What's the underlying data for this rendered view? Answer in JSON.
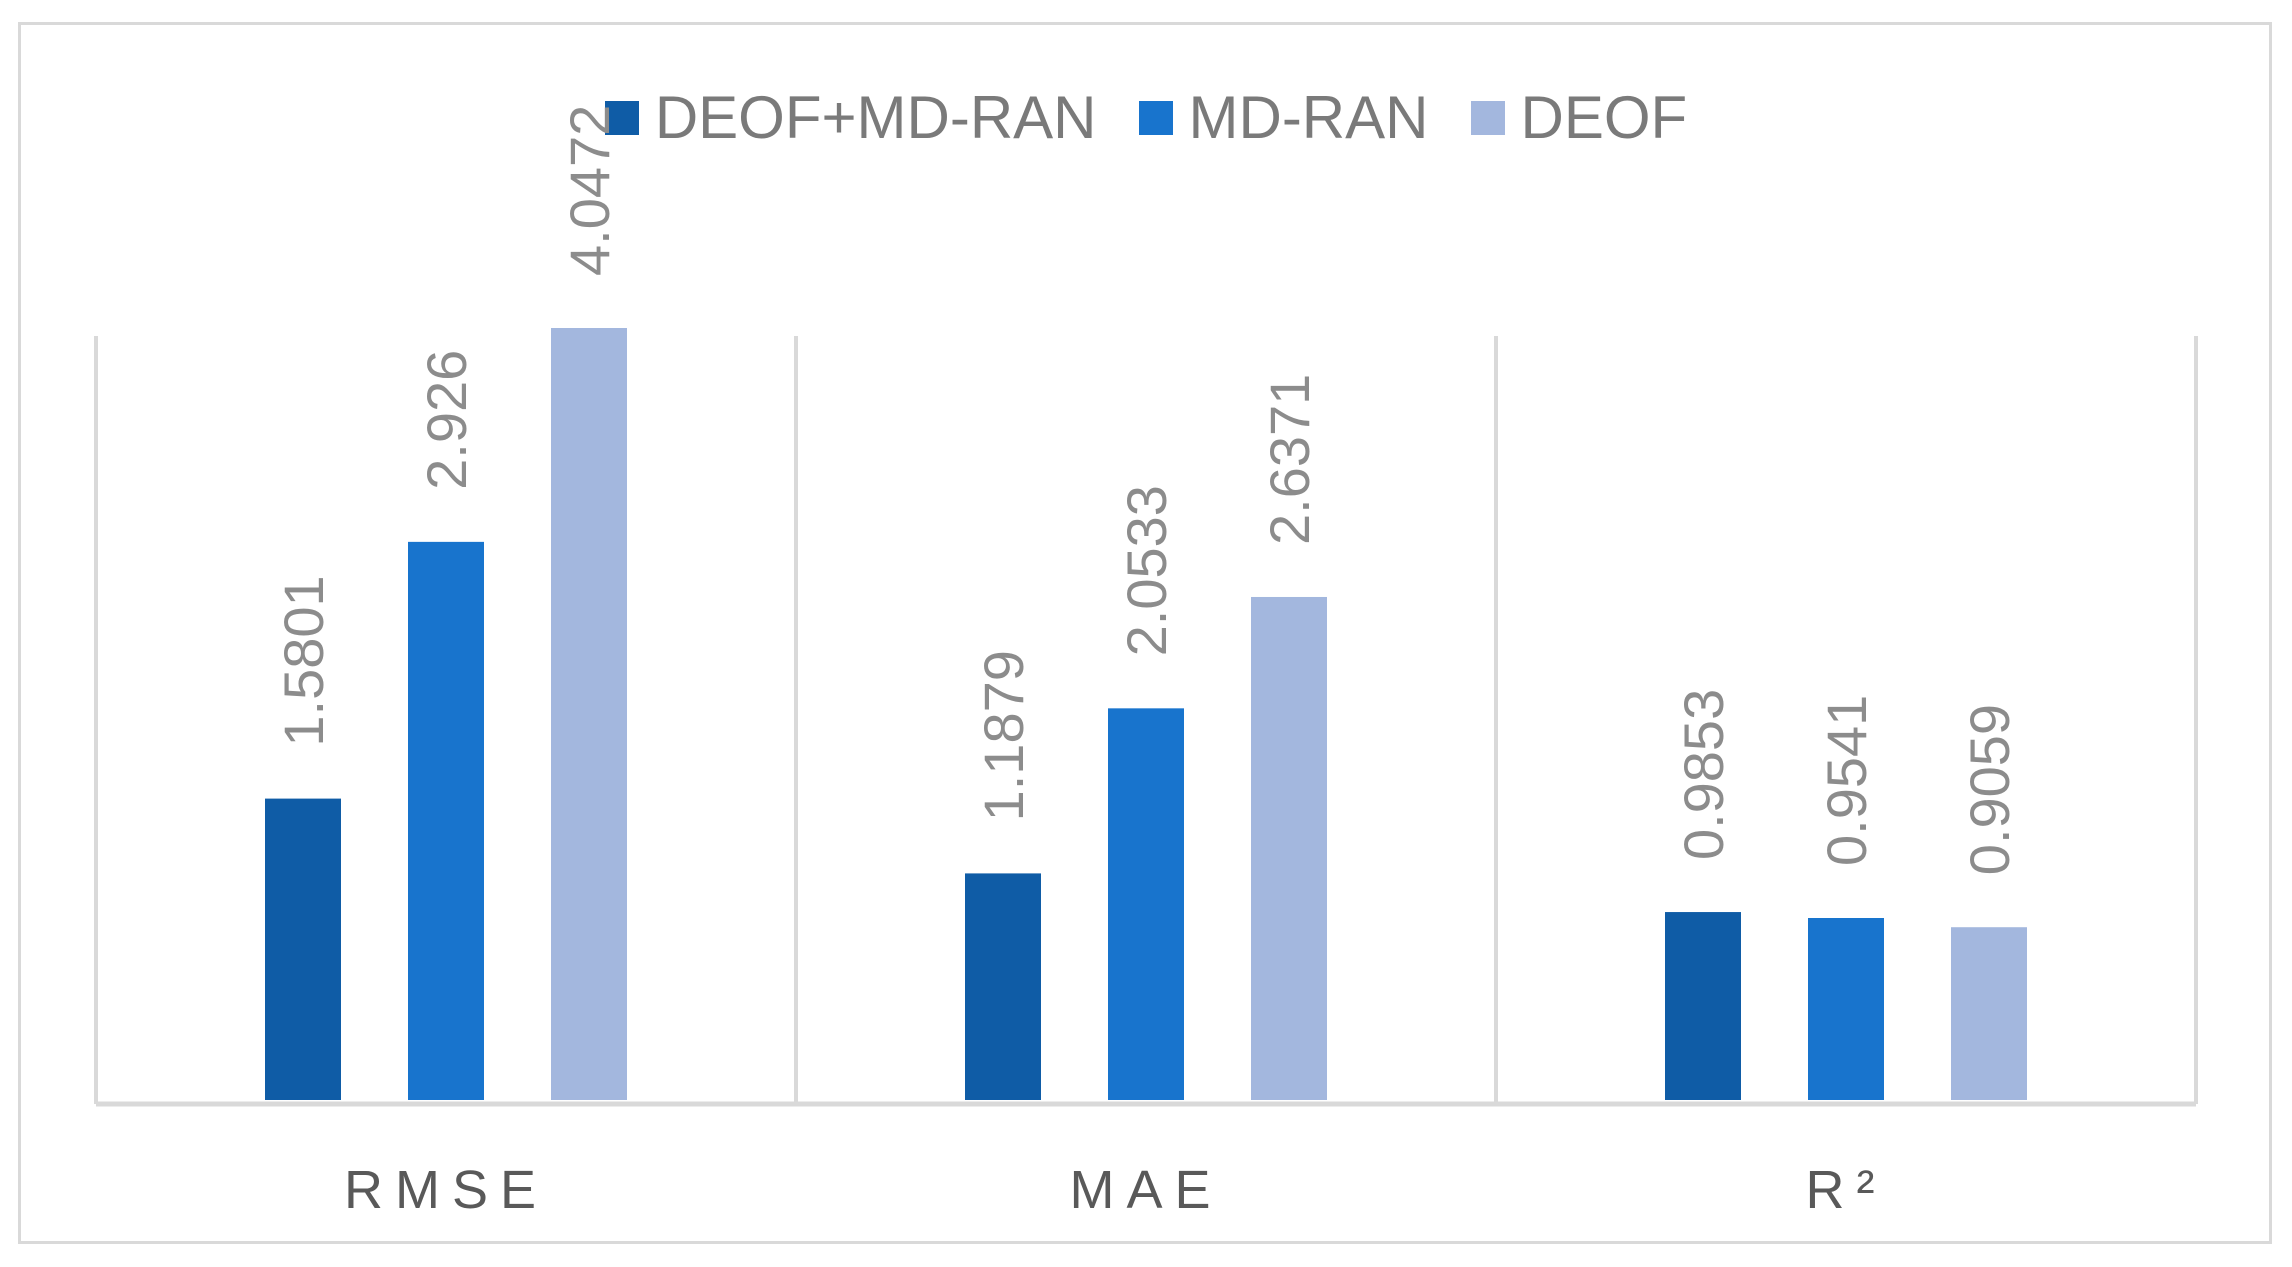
{
  "chart_data": {
    "type": "bar",
    "categories": [
      "RMSE",
      "MAE",
      "R²"
    ],
    "series": [
      {
        "name": "DEOF+MD-RAN",
        "color": "#0f5ca6",
        "values": [
          1.5801,
          1.1879,
          0.9853
        ],
        "labels": [
          "1.5801",
          "1.1879",
          "0.9853"
        ]
      },
      {
        "name": "MD-RAN",
        "color": "#1874cd",
        "values": [
          2.926,
          2.0533,
          0.9541
        ],
        "labels": [
          "2.926",
          "2.0533",
          "0.9541"
        ]
      },
      {
        "name": "DEOF",
        "color": "#a3b7de",
        "values": [
          4.0472,
          2.6371,
          0.9059
        ],
        "labels": [
          "4.0472",
          "2.6371",
          "0.9059"
        ]
      }
    ],
    "ylim": [
      0,
      5
    ],
    "legend_position": "top",
    "grid": true,
    "title": "",
    "xlabel": "",
    "ylabel": ""
  }
}
